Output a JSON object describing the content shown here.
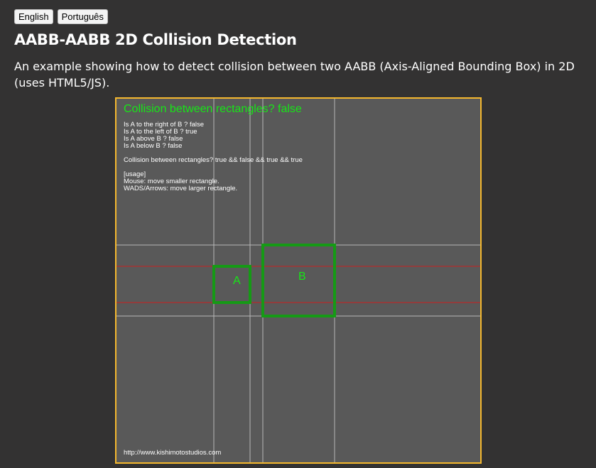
{
  "languages": [
    "English",
    "Português"
  ],
  "title": "AABB-AABB 2D Collision Detection",
  "description": "An example showing how to detect collision between two AABB (Axis-Aligned Bounding Box) in 2D (uses HTML5/JS).",
  "canvas": {
    "collision_title": "Collision between rectangles? false",
    "checks": [
      "Is A to the right of B ? false",
      "Is A to the left of B ? true",
      "Is A above B ? false",
      "Is A below B ? false"
    ],
    "expression": "Collision between rectangles? true && false && true && true",
    "usage": [
      "[usage]",
      "Mouse: move smaller rectangle.",
      "WADS/Arrows: move larger rectangle."
    ],
    "box_a_label": "A",
    "box_b_label": "B",
    "url": "http://www.kishimotostudios.com",
    "colors": {
      "box": "#159a15",
      "label": "#17e617",
      "guide": "#b8b8b8",
      "overlap_line": "#cc1f1f",
      "background": "#595959",
      "border": "#f5b82e"
    }
  }
}
